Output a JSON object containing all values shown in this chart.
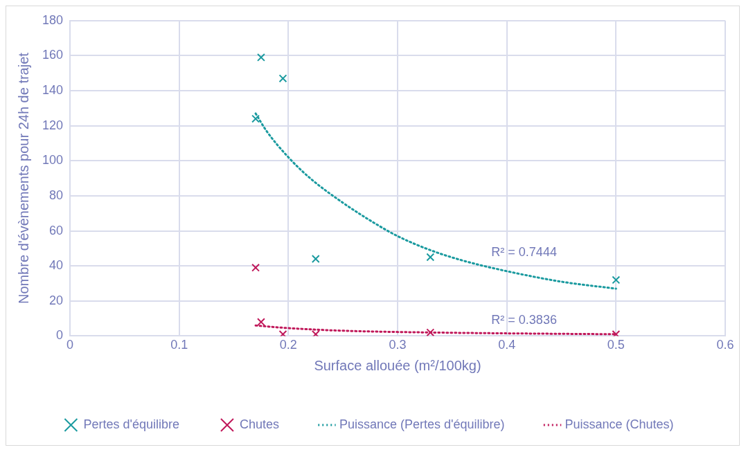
{
  "chart_data": {
    "type": "scatter",
    "xlabel": "Surface allouée (m²/100kg)",
    "ylabel": "Nombre d'évènements pour 24h de trajet",
    "xlim": [
      0,
      0.6
    ],
    "xticks": [
      0,
      0.1,
      0.2,
      0.3,
      0.4,
      0.5,
      0.6
    ],
    "ylim": [
      0,
      180
    ],
    "yticks": [
      0,
      20,
      40,
      60,
      80,
      100,
      120,
      140,
      160,
      180
    ],
    "grid": true,
    "legend": "bottom",
    "series": [
      {
        "name": "Pertes d'équilibre",
        "marker": "cross",
        "color": "#1a9a9f",
        "x": [
          0.17,
          0.175,
          0.195,
          0.225,
          0.33,
          0.5
        ],
        "values": [
          124,
          159,
          147,
          44,
          45,
          32
        ]
      },
      {
        "name": "Chutes",
        "marker": "cross",
        "color": "#c0185a",
        "x": [
          0.17,
          0.175,
          0.195,
          0.225,
          0.33,
          0.5
        ],
        "values": [
          39,
          8,
          1,
          1,
          2,
          1
        ]
      },
      {
        "name": "Puissance (Pertes d'équilibre)",
        "type": "line",
        "line_style": "dotted",
        "color": "#1a9a9f",
        "x": [
          0.17,
          0.18,
          0.2,
          0.22,
          0.25,
          0.28,
          0.3,
          0.33,
          0.36,
          0.4,
          0.45,
          0.5
        ],
        "values": [
          127,
          117,
          102,
          90,
          76,
          64,
          57,
          49,
          43,
          37,
          31,
          27
        ]
      },
      {
        "name": "Puissance (Chutes)",
        "type": "line",
        "line_style": "dotted",
        "color": "#c0185a",
        "x": [
          0.17,
          0.2,
          0.25,
          0.33,
          0.4,
          0.5
        ],
        "values": [
          6,
          4.5,
          3,
          2,
          1.5,
          1
        ]
      }
    ],
    "annotations": [
      "R² = 0.7444",
      "R² = 0.3836"
    ]
  }
}
